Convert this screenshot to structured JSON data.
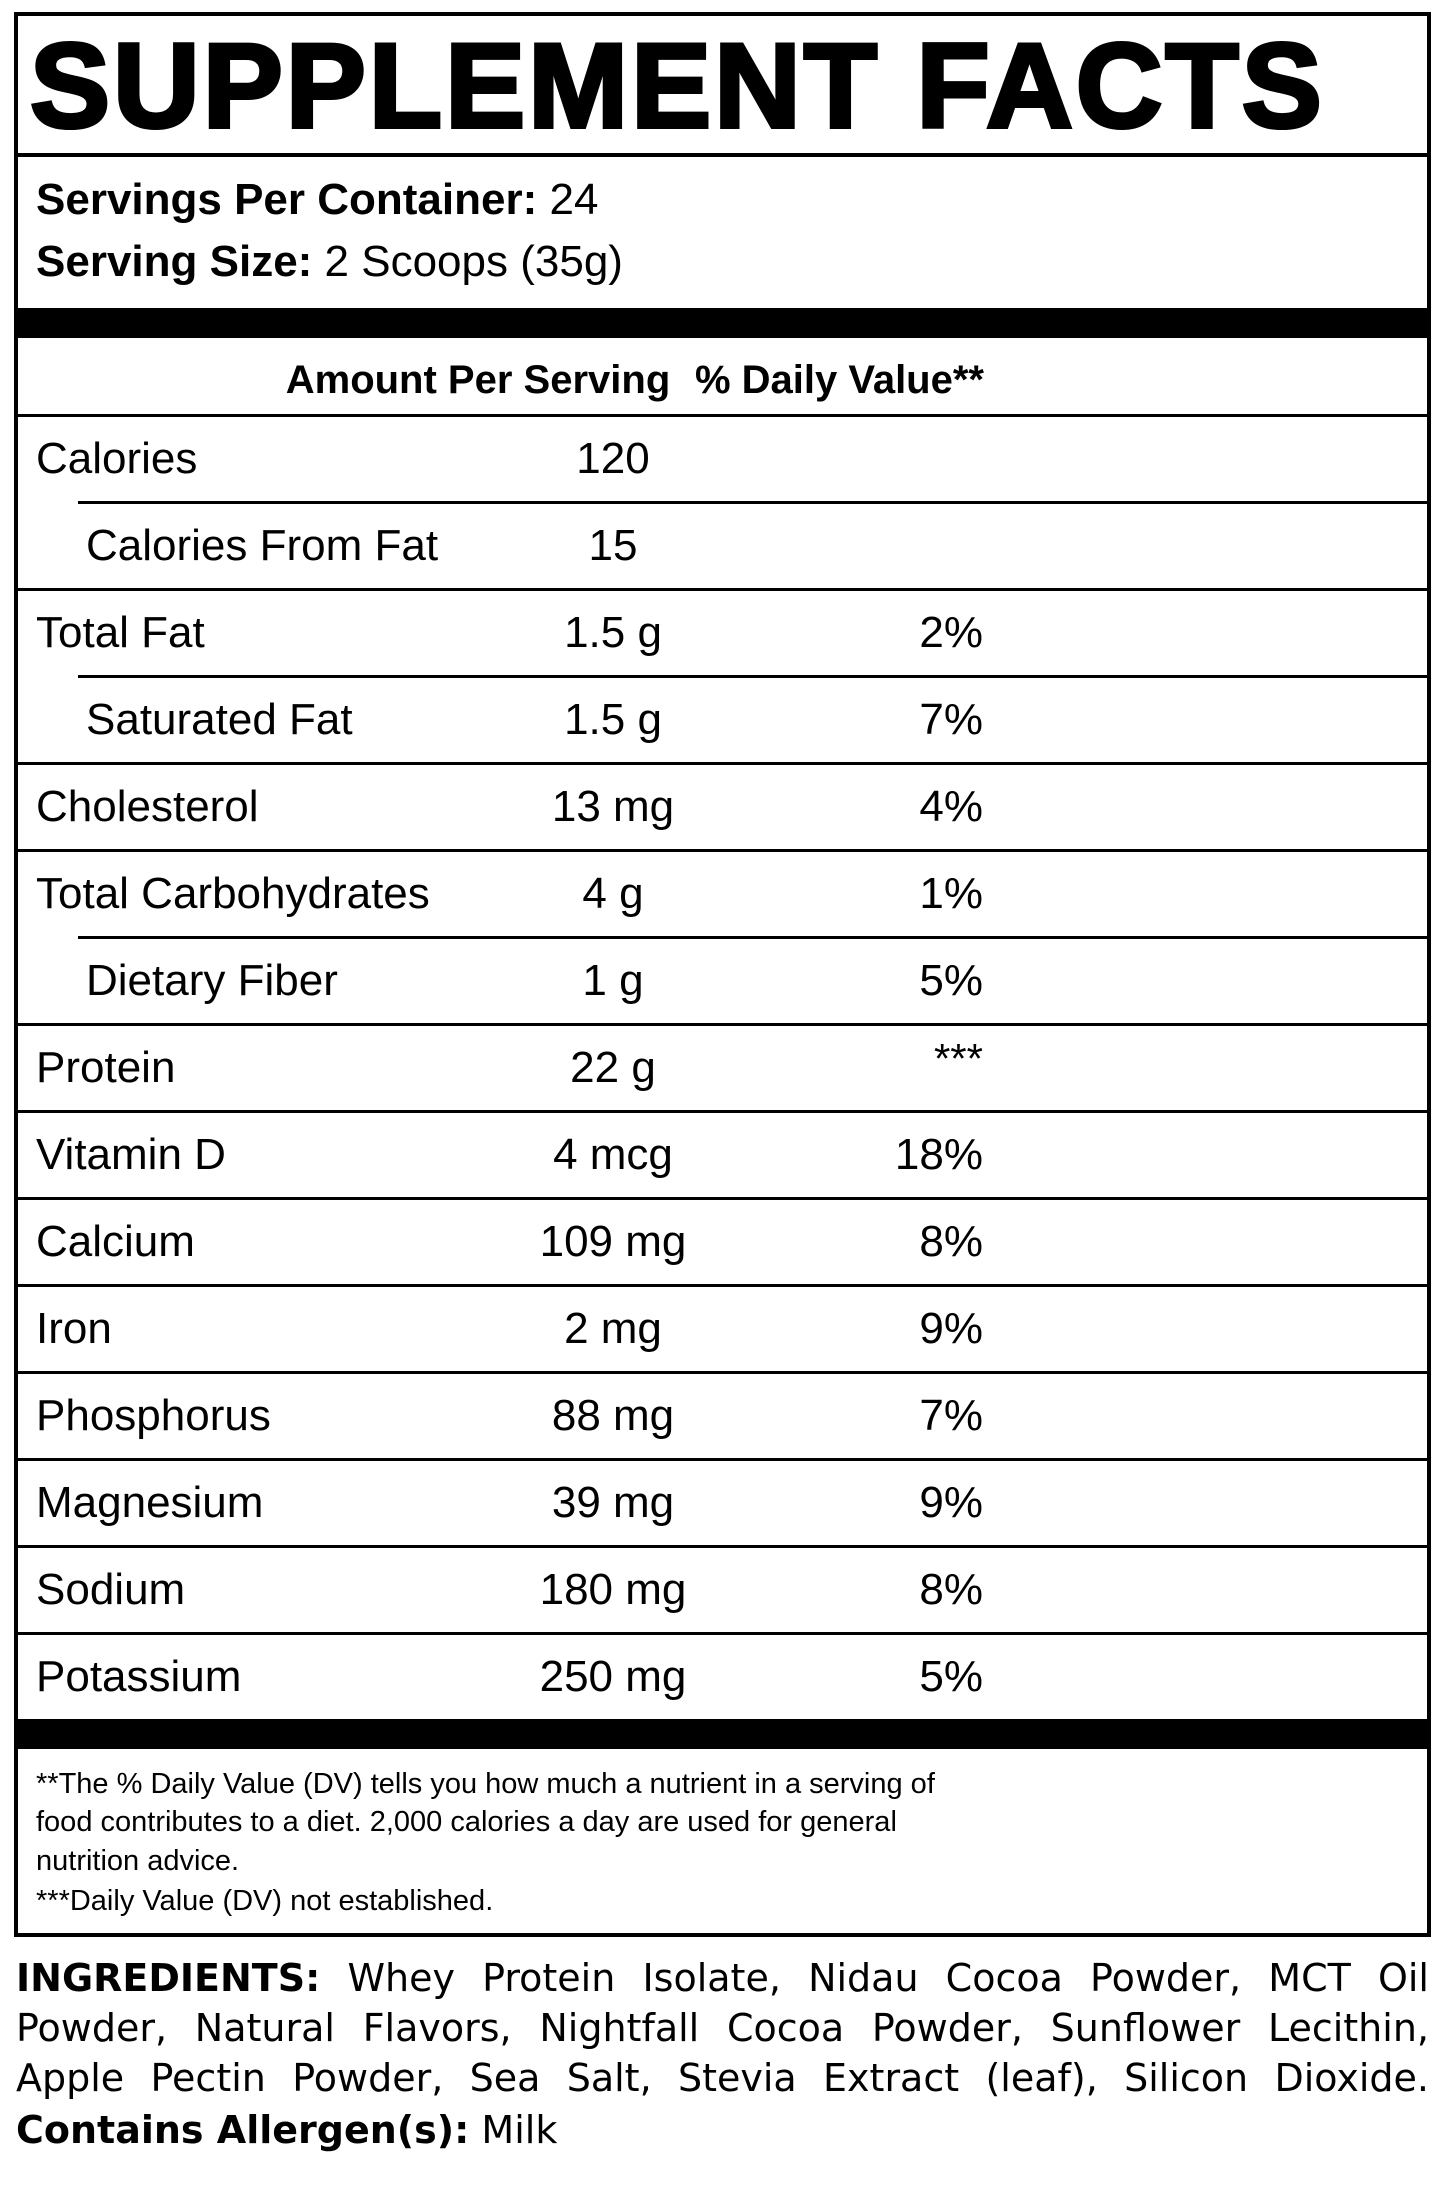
{
  "title": "SUPPLEMENT FACTS",
  "servings": {
    "per_container_label": "Servings Per Container:",
    "per_container_value": "24",
    "size_label": "Serving Size:",
    "size_value": "2 Scoops (35g)"
  },
  "table": {
    "amount_header": "Amount Per Serving",
    "dv_header": "% Daily Value**",
    "rows": [
      {
        "name": "Calories",
        "amount": "120",
        "dv": ""
      },
      {
        "name": "Calories From Fat",
        "amount": "15",
        "dv": ""
      },
      {
        "name": "Total Fat",
        "amount": "1.5 g",
        "dv": "2%"
      },
      {
        "name": "Saturated Fat",
        "amount": "1.5 g",
        "dv": "7%"
      },
      {
        "name": "Cholesterol",
        "amount": "13 mg",
        "dv": "4%"
      },
      {
        "name": "Total Carbohydrates",
        "amount": "4 g",
        "dv": "1%"
      },
      {
        "name": "Dietary Fiber",
        "amount": "1 g",
        "dv": "5%"
      },
      {
        "name": "Protein",
        "amount": "22 g",
        "dv": "***"
      },
      {
        "name": "Vitamin D",
        "amount": "4 mcg",
        "dv": "18%"
      },
      {
        "name": "Calcium",
        "amount": "109 mg",
        "dv": "8%"
      },
      {
        "name": "Iron",
        "amount": "2 mg",
        "dv": "9%"
      },
      {
        "name": "Phosphorus",
        "amount": "88 mg",
        "dv": "7%"
      },
      {
        "name": "Magnesium",
        "amount": "39 mg",
        "dv": "9%"
      },
      {
        "name": "Sodium",
        "amount": "180 mg",
        "dv": "8%"
      },
      {
        "name": "Potassium",
        "amount": "250 mg",
        "dv": "5%"
      }
    ]
  },
  "footnotes": {
    "daily_value": "**The % Daily Value (DV) tells you how much a nutrient in a serving of\nfood contributes to a diet. 2,000 calories a day are used for general\nnutrition advice.",
    "not_established": "***Daily Value (DV) not established."
  },
  "ingredients": {
    "label": "INGREDIENTS:",
    "text": "Whey Protein Isolate, Nidau Cocoa Powder, MCT Oil Powder, Natural Flavors, Nightfall Cocoa Powder, Sunflower Lecithin, Apple Pectin Powder, Sea Salt, Stevia Extract (leaf), Silicon Dioxide.",
    "allergen_label": "Contains Allergen(s):",
    "allergen_value": "Milk"
  }
}
